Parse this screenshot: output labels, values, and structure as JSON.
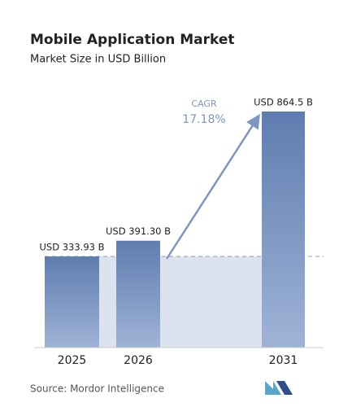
{
  "chart_data": {
    "type": "bar",
    "title": "Mobile Application Market",
    "subtitle": "Market Size in USD Billion",
    "categories": [
      "2025",
      "2026",
      "2031"
    ],
    "values": [
      333.93,
      391.3,
      864.5
    ],
    "value_labels": [
      "USD 333.93 B",
      "USD 391.30 B",
      "USD 864.5 B"
    ],
    "color": "#6f8dbd",
    "annotation": {
      "label": "CAGR",
      "value": "17.18%"
    },
    "source": "Source:  Mordor Intelligence"
  }
}
